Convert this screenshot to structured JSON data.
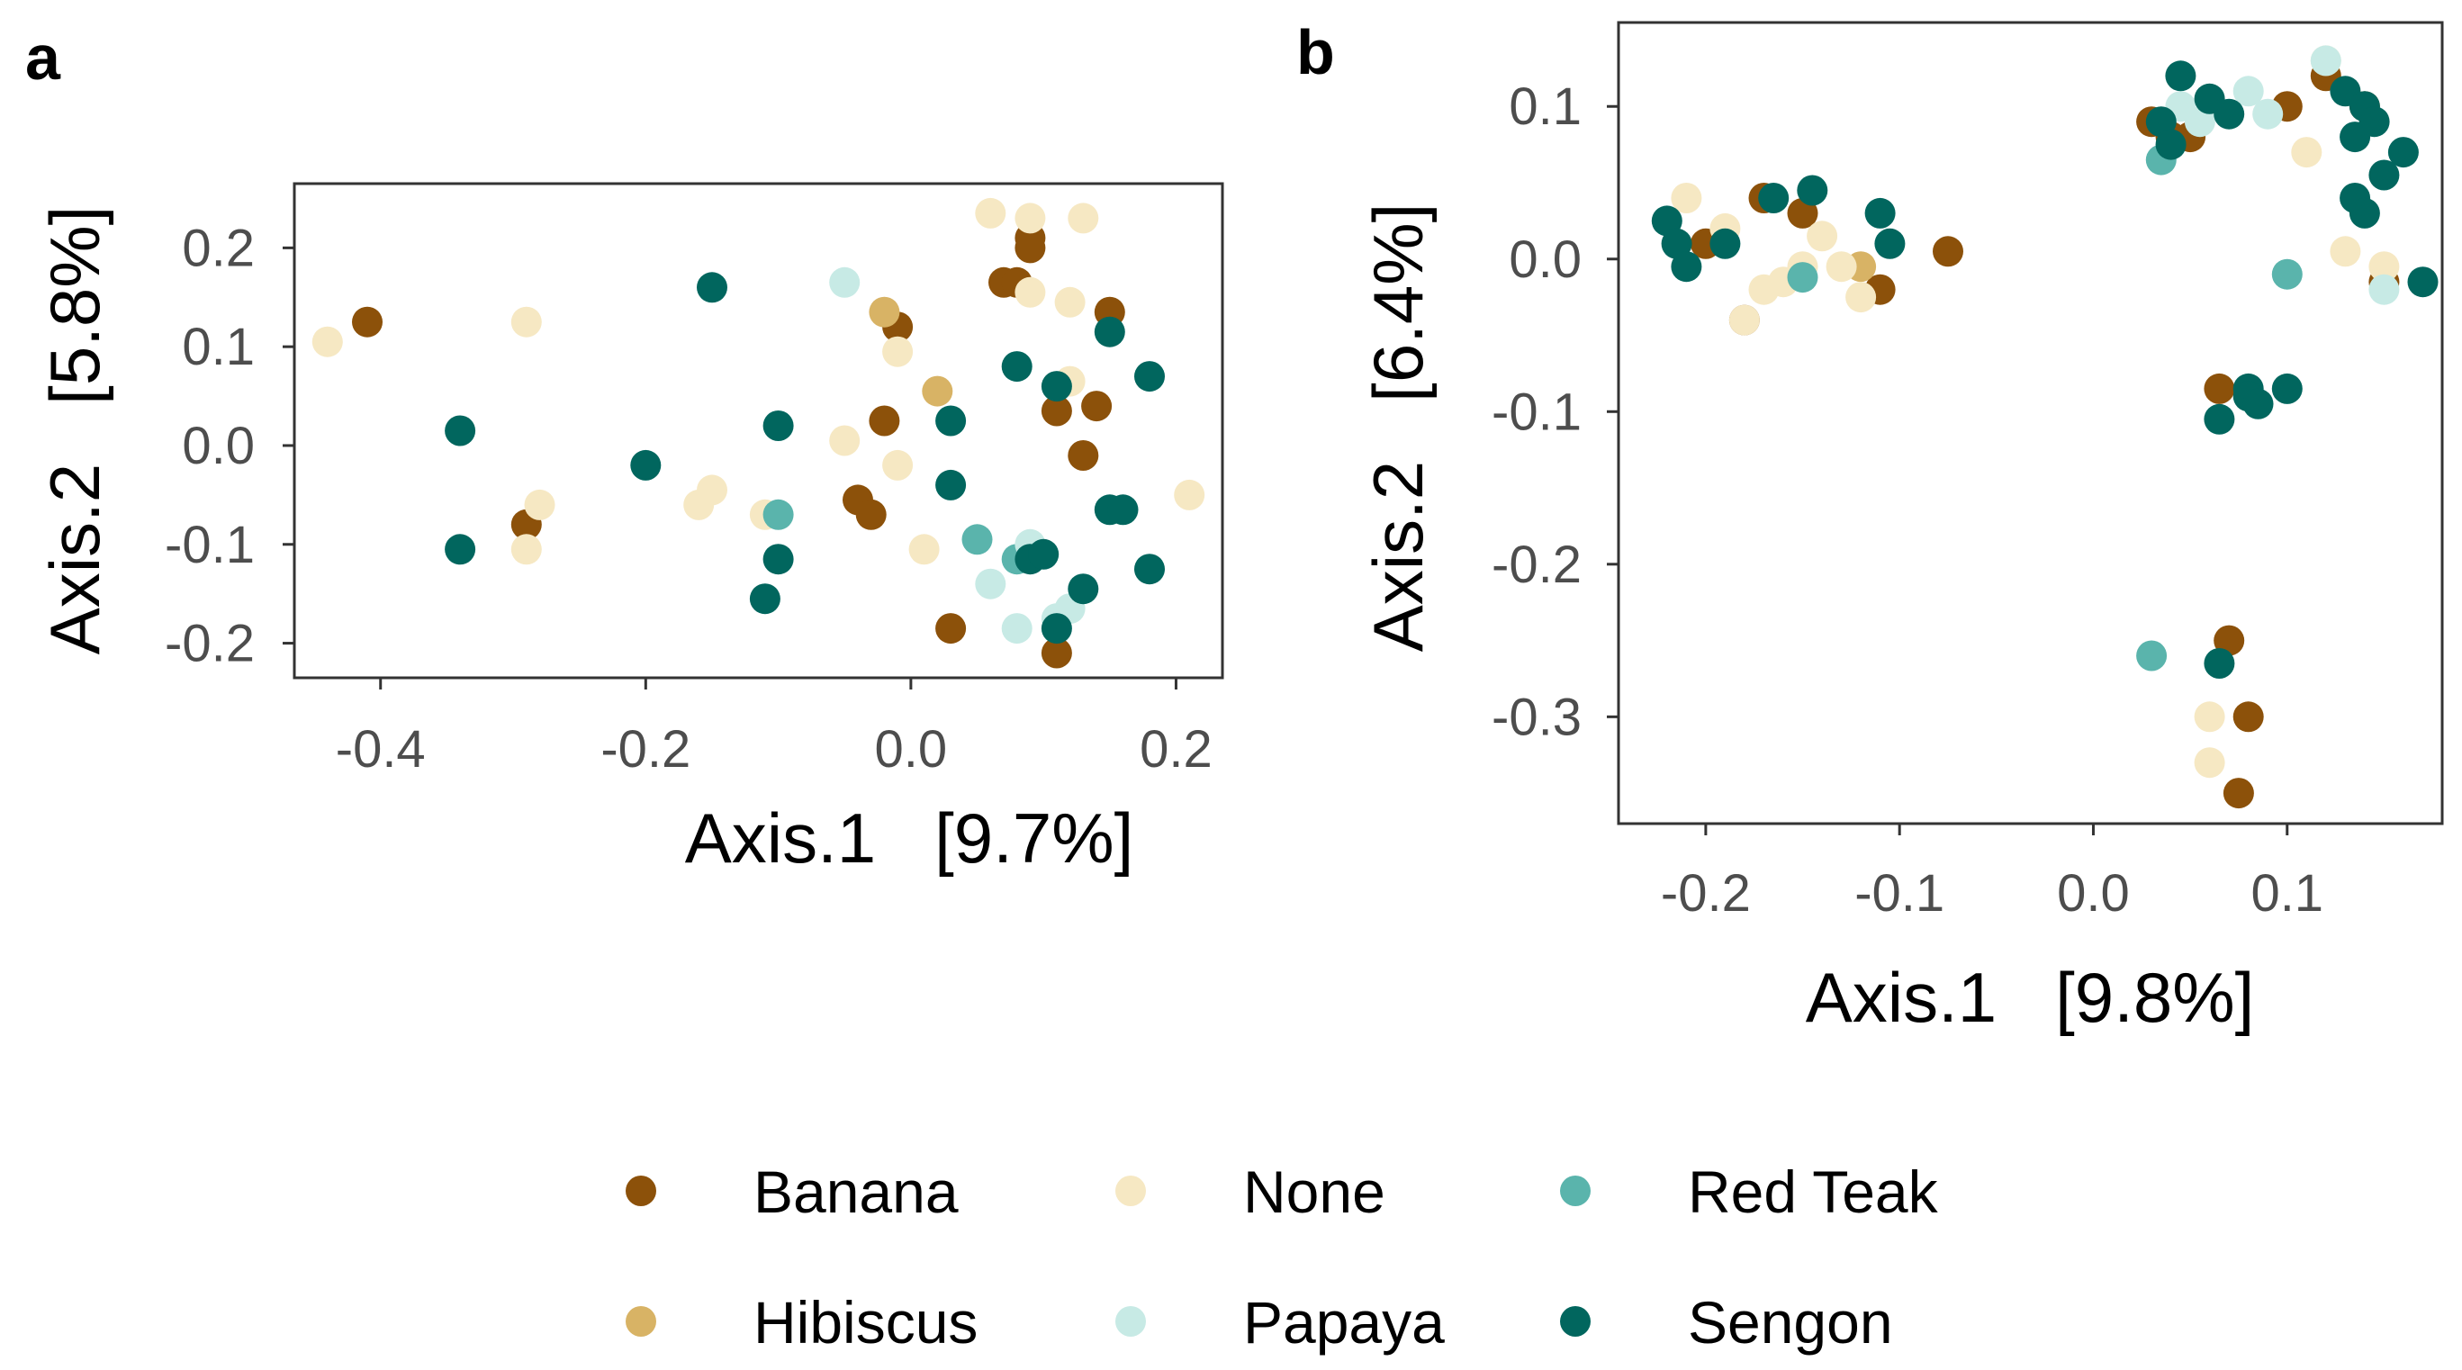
{
  "chart_data": [
    {
      "panel": "a",
      "type": "scatter",
      "xlabel": "Axis.1   [9.7%]",
      "ylabel": "Axis.2   [5.8%]",
      "xlim": [
        -0.465,
        0.235
      ],
      "ylim": [
        -0.235,
        0.265
      ],
      "xticks": [
        -0.4,
        -0.2,
        0.0,
        0.2
      ],
      "xtick_labels": [
        "-0.4",
        "-0.2",
        "0.0",
        "0.2"
      ],
      "yticks": [
        -0.2,
        -0.1,
        0.0,
        0.1,
        0.2
      ],
      "ytick_labels": [
        "-0.2",
        "-0.1",
        "0.0",
        "0.1",
        "0.2"
      ],
      "grid": false,
      "series": [
        {
          "name": "Banana",
          "points": [
            [
              -0.41,
              0.125
            ],
            [
              -0.29,
              -0.08
            ],
            [
              -0.04,
              -0.055
            ],
            [
              -0.03,
              -0.07
            ],
            [
              -0.02,
              0.025
            ],
            [
              -0.01,
              0.12
            ],
            [
              0.07,
              0.165
            ],
            [
              0.08,
              0.165
            ],
            [
              0.09,
              0.21
            ],
            [
              0.09,
              0.2
            ],
            [
              0.15,
              0.135
            ],
            [
              0.11,
              0.035
            ],
            [
              0.14,
              0.04
            ],
            [
              0.13,
              -0.01
            ],
            [
              0.03,
              -0.185
            ],
            [
              0.11,
              -0.21
            ]
          ]
        },
        {
          "name": "Hibiscus",
          "points": [
            [
              -0.02,
              0.135
            ],
            [
              0.02,
              0.055
            ]
          ]
        },
        {
          "name": "None",
          "points": [
            [
              -0.44,
              0.105
            ],
            [
              -0.29,
              0.125
            ],
            [
              -0.29,
              -0.105
            ],
            [
              -0.28,
              -0.06
            ],
            [
              -0.16,
              -0.06
            ],
            [
              -0.15,
              -0.045
            ],
            [
              -0.11,
              -0.07
            ],
            [
              -0.05,
              0.005
            ],
            [
              -0.01,
              0.095
            ],
            [
              -0.01,
              -0.02
            ],
            [
              0.01,
              -0.105
            ],
            [
              0.06,
              0.235
            ],
            [
              0.09,
              0.23
            ],
            [
              0.09,
              0.155
            ],
            [
              0.12,
              0.145
            ],
            [
              0.13,
              0.23
            ],
            [
              0.12,
              0.065
            ],
            [
              0.21,
              -0.05
            ]
          ]
        },
        {
          "name": "Red Teak",
          "points": [
            [
              -0.1,
              -0.07
            ],
            [
              0.05,
              -0.095
            ],
            [
              0.08,
              -0.115
            ]
          ]
        },
        {
          "name": "Papaya",
          "points": [
            [
              -0.05,
              0.165
            ],
            [
              0.06,
              -0.14
            ],
            [
              0.08,
              -0.185
            ],
            [
              0.09,
              -0.1
            ],
            [
              0.11,
              -0.175
            ],
            [
              0.12,
              -0.165
            ]
          ]
        },
        {
          "name": "Sengon",
          "points": [
            [
              -0.34,
              0.015
            ],
            [
              -0.34,
              -0.105
            ],
            [
              -0.2,
              -0.02
            ],
            [
              -0.15,
              0.16
            ],
            [
              -0.1,
              0.02
            ],
            [
              -0.1,
              -0.115
            ],
            [
              -0.11,
              -0.155
            ],
            [
              0.03,
              0.025
            ],
            [
              0.03,
              -0.04
            ],
            [
              0.08,
              0.08
            ],
            [
              0.09,
              -0.115
            ],
            [
              0.1,
              -0.11
            ],
            [
              0.11,
              0.06
            ],
            [
              0.11,
              -0.185
            ],
            [
              0.13,
              -0.145
            ],
            [
              0.15,
              0.115
            ],
            [
              0.15,
              -0.065
            ],
            [
              0.16,
              -0.065
            ],
            [
              0.18,
              0.07
            ],
            [
              0.18,
              -0.125
            ]
          ]
        }
      ]
    },
    {
      "panel": "b",
      "type": "scatter",
      "xlabel": "Axis.1   [9.8%]",
      "ylabel": "Axis.2   [6.4%]",
      "xlim": [
        -0.245,
        0.18
      ],
      "ylim": [
        -0.37,
        0.155
      ],
      "xticks": [
        -0.2,
        -0.1,
        0.0,
        0.1
      ],
      "xtick_labels": [
        "-0.2",
        "-0.1",
        "0.0",
        "0.1"
      ],
      "yticks": [
        -0.3,
        -0.2,
        -0.1,
        0.0,
        0.1
      ],
      "ytick_labels": [
        "-0.3",
        "-0.2",
        "-0.1",
        "0.0",
        "0.1"
      ],
      "grid": false,
      "series": [
        {
          "name": "Banana",
          "points": [
            [
              -0.18,
              -0.04
            ],
            [
              -0.2,
              0.01
            ],
            [
              -0.17,
              0.04
            ],
            [
              -0.15,
              0.03
            ],
            [
              -0.11,
              -0.02
            ],
            [
              -0.075,
              0.005
            ],
            [
              0.03,
              0.09
            ],
            [
              0.04,
              0.08
            ],
            [
              0.05,
              0.08
            ],
            [
              0.1,
              0.1
            ],
            [
              0.12,
              0.12
            ],
            [
              0.14,
              0.1
            ],
            [
              0.15,
              -0.015
            ],
            [
              0.065,
              -0.085
            ],
            [
              0.07,
              -0.25
            ],
            [
              0.08,
              -0.3
            ],
            [
              0.075,
              -0.35
            ]
          ]
        },
        {
          "name": "Hibiscus",
          "points": [
            [
              -0.12,
              -0.005
            ]
          ]
        },
        {
          "name": "None",
          "points": [
            [
              -0.21,
              0.04
            ],
            [
              -0.19,
              0.02
            ],
            [
              -0.18,
              -0.04
            ],
            [
              -0.17,
              -0.02
            ],
            [
              -0.16,
              -0.015
            ],
            [
              -0.15,
              -0.005
            ],
            [
              -0.14,
              0.015
            ],
            [
              -0.13,
              -0.005
            ],
            [
              -0.12,
              -0.025
            ],
            [
              0.12,
              0.13
            ],
            [
              0.11,
              0.07
            ],
            [
              0.13,
              0.005
            ],
            [
              0.15,
              -0.005
            ],
            [
              0.06,
              -0.3
            ],
            [
              0.06,
              -0.33
            ]
          ]
        },
        {
          "name": "Red Teak",
          "points": [
            [
              -0.15,
              -0.012
            ],
            [
              0.035,
              0.065
            ],
            [
              0.1,
              -0.01
            ],
            [
              0.03,
              -0.26
            ]
          ]
        },
        {
          "name": "Papaya",
          "points": [
            [
              0.045,
              0.1
            ],
            [
              0.055,
              0.09
            ],
            [
              0.08,
              0.11
            ],
            [
              0.09,
              0.095
            ],
            [
              0.12,
              0.13
            ],
            [
              0.15,
              -0.02
            ]
          ]
        },
        {
          "name": "Sengon",
          "points": [
            [
              -0.22,
              0.025
            ],
            [
              -0.215,
              0.01
            ],
            [
              -0.21,
              -0.005
            ],
            [
              -0.19,
              0.01
            ],
            [
              -0.165,
              0.04
            ],
            [
              -0.145,
              0.045
            ],
            [
              -0.11,
              0.03
            ],
            [
              -0.105,
              0.01
            ],
            [
              0.035,
              0.09
            ],
            [
              0.04,
              0.075
            ],
            [
              0.045,
              0.12
            ],
            [
              0.06,
              0.105
            ],
            [
              0.07,
              0.095
            ],
            [
              0.13,
              0.11
            ],
            [
              0.14,
              0.1
            ],
            [
              0.135,
              0.08
            ],
            [
              0.145,
              0.09
            ],
            [
              0.15,
              0.055
            ],
            [
              0.16,
              0.07
            ],
            [
              0.135,
              0.04
            ],
            [
              0.14,
              0.03
            ],
            [
              0.17,
              -0.015
            ],
            [
              0.08,
              -0.085
            ],
            [
              0.08,
              -0.09
            ],
            [
              0.085,
              -0.095
            ],
            [
              0.1,
              -0.085
            ],
            [
              0.065,
              -0.105
            ],
            [
              0.065,
              -0.265
            ]
          ]
        }
      ]
    }
  ],
  "legend": {
    "items": [
      {
        "name": "Banana",
        "color": "#8c510a"
      },
      {
        "name": "None",
        "color": "#f6e8c3"
      },
      {
        "name": "Red Teak",
        "color": "#5ab4ac"
      },
      {
        "name": "Hibiscus",
        "color": "#d8b365"
      },
      {
        "name": "Papaya",
        "color": "#c7eae5"
      },
      {
        "name": "Sengon",
        "color": "#01665e"
      }
    ]
  }
}
